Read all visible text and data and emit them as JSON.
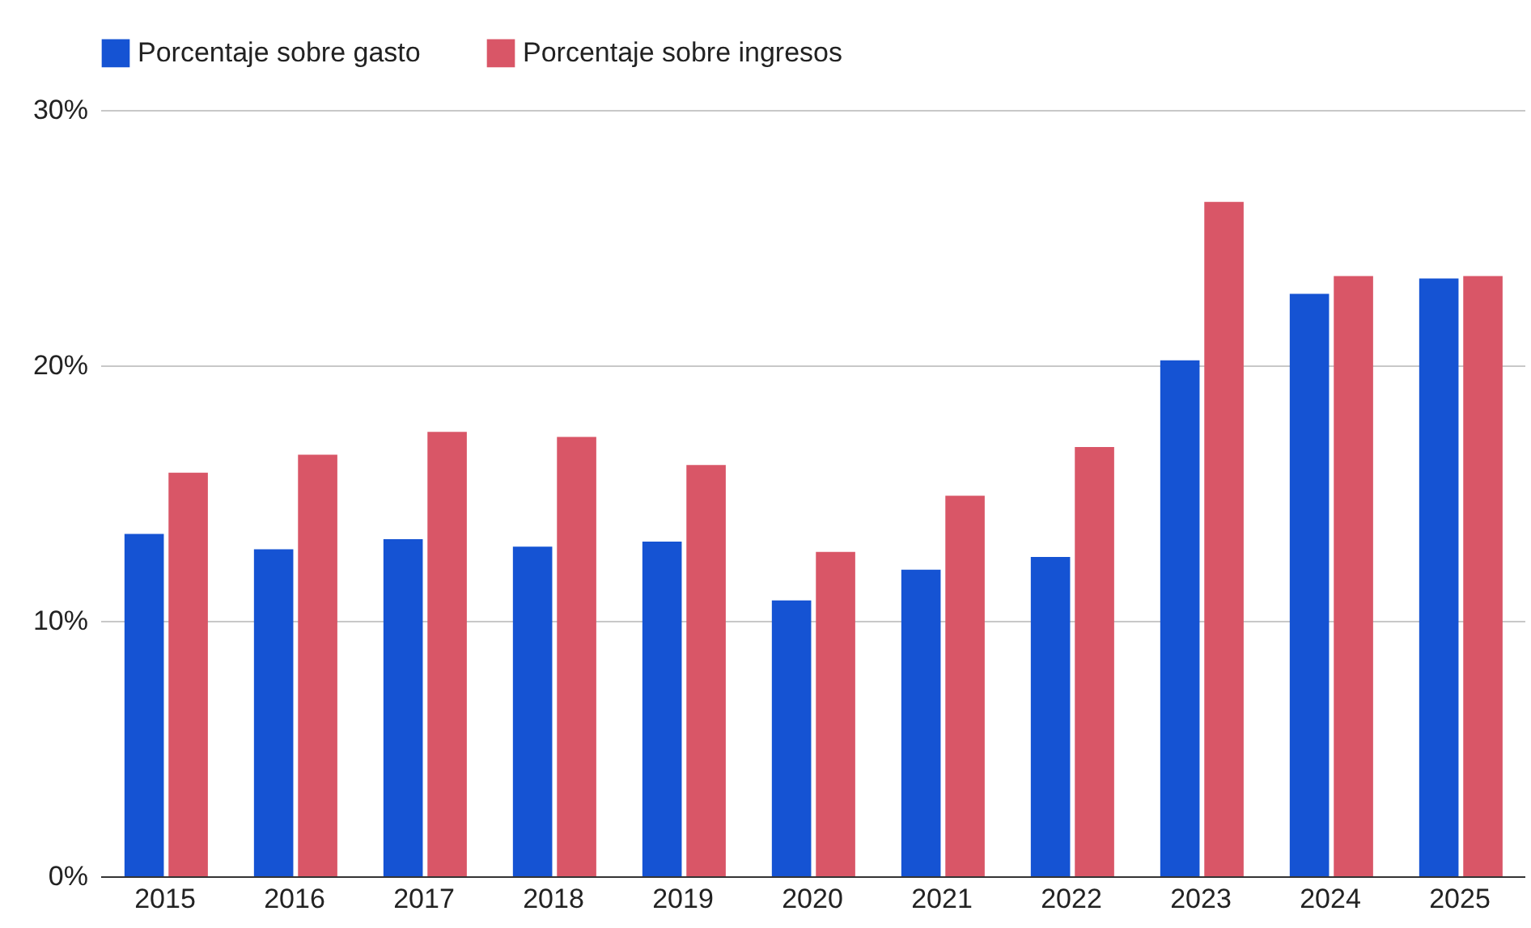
{
  "chart_data": {
    "type": "bar",
    "categories": [
      "2015",
      "2016",
      "2017",
      "2018",
      "2019",
      "2020",
      "2021",
      "2022",
      "2023",
      "2024",
      "2025"
    ],
    "series": [
      {
        "name": "Porcentaje sobre gasto",
        "color": "#1553d3",
        "values": [
          13.4,
          12.8,
          13.2,
          12.9,
          13.1,
          10.8,
          12.0,
          12.5,
          20.2,
          22.8,
          23.4
        ]
      },
      {
        "name": "Porcentaje sobre ingresos",
        "color": "#d95667",
        "values": [
          15.8,
          16.5,
          17.4,
          17.2,
          16.1,
          12.7,
          14.9,
          16.8,
          26.4,
          23.5,
          23.5
        ]
      }
    ],
    "ylim": [
      0,
      30
    ],
    "yticks": [
      {
        "value": 0,
        "label": "0%"
      },
      {
        "value": 10,
        "label": "10%"
      },
      {
        "value": 20,
        "label": "20%"
      },
      {
        "value": 30,
        "label": "30%"
      }
    ],
    "grid": "y",
    "legend": "top"
  }
}
